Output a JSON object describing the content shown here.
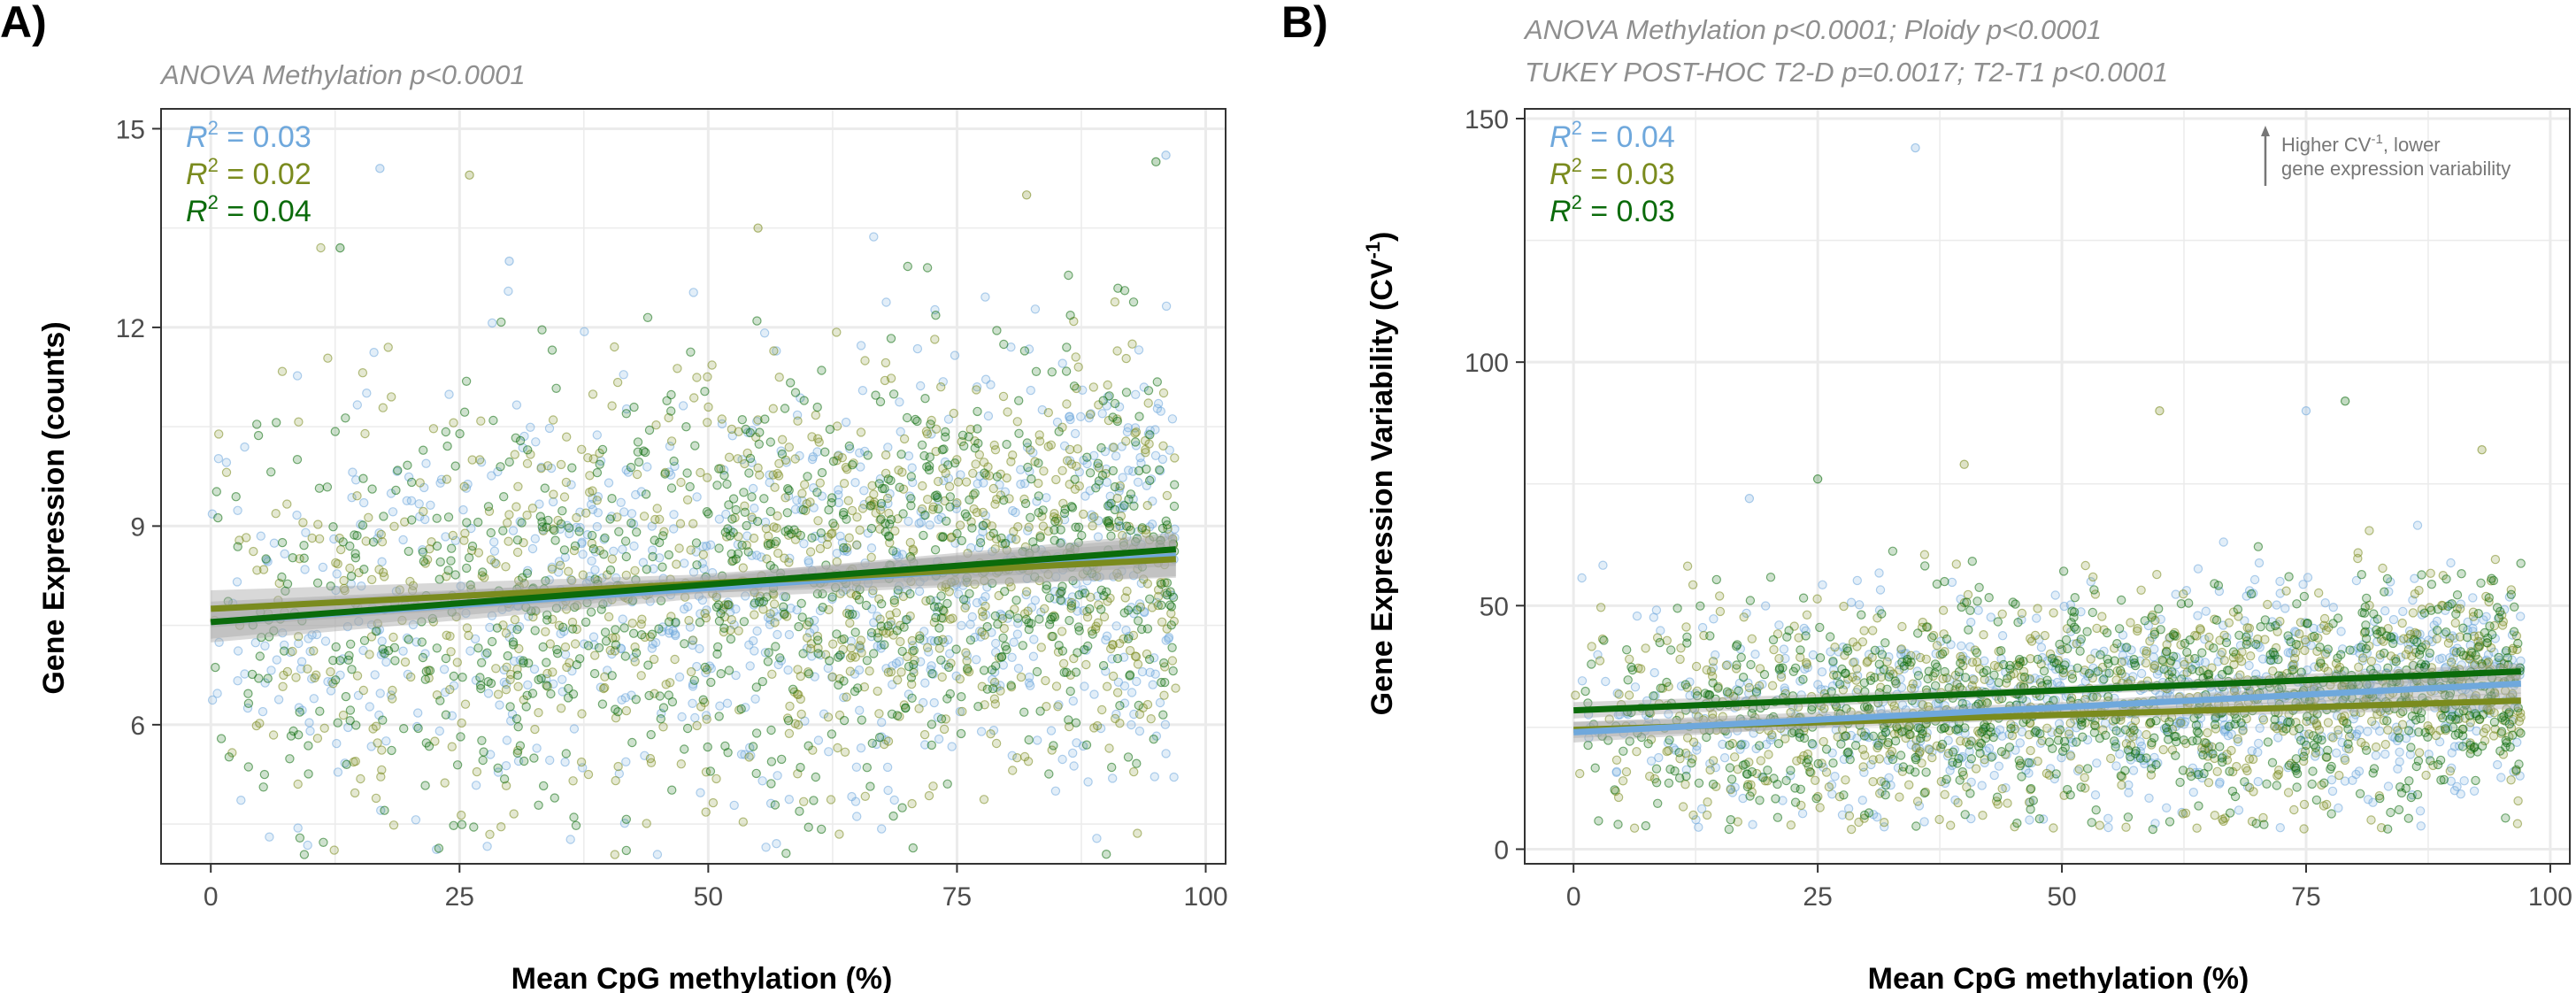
{
  "colors": {
    "series1": "#6fa8dc",
    "series2": "#7a8b1e",
    "series3": "#0b6b0b",
    "grid": "#ebebeb",
    "panel_border": "#333333",
    "ci_band": "#a8a8a8"
  },
  "chart_data": [
    {
      "type": "scatter",
      "panel_label": "A)",
      "subtitles": [
        "ANOVA Methylation p<0.0001"
      ],
      "xlabel": "Mean CpG methylation (%)",
      "ylabel": "Gene Expression (counts)",
      "xlim": [
        -5,
        102
      ],
      "ylim": [
        3.9,
        15.3
      ],
      "xticks": [
        0,
        25,
        50,
        75,
        100
      ],
      "yticks": [
        6,
        9,
        12,
        15
      ],
      "grid": true,
      "legend_position": "top-left",
      "r2_labels": [
        {
          "label": "R",
          "sup": "2",
          "value": " = 0.03",
          "color": "#6fa8dc"
        },
        {
          "label": "R",
          "sup": "2",
          "value": " = 0.02",
          "color": "#7a8b1e"
        },
        {
          "label": "R",
          "sup": "2",
          "value": " = 0.04",
          "color": "#0b6b0b"
        }
      ],
      "fit_lines": [
        {
          "x": [
            0,
            97
          ],
          "y": [
            7.55,
            8.55
          ],
          "ci": 0.22,
          "color": "#6fa8dc"
        },
        {
          "x": [
            0,
            97
          ],
          "y": [
            7.75,
            8.5
          ],
          "ci": 0.2,
          "color": "#7a8b1e"
        },
        {
          "x": [
            0,
            97
          ],
          "y": [
            7.55,
            8.65
          ],
          "ci": 0.18,
          "color": "#0b6b0b"
        }
      ],
      "scatter": {
        "points_per_series": 900,
        "x_range": [
          0,
          97
        ],
        "y_center_start": 7.6,
        "y_center_end": 8.6,
        "y_spread": 1.6,
        "y_min": 4.0,
        "y_max": 14.6,
        "outliers": [
          [
            17,
            14.4
          ],
          [
            26,
            14.3
          ],
          [
            95,
            14.5
          ],
          [
            96,
            14.6
          ],
          [
            82,
            14.0
          ],
          [
            13,
            13.2
          ],
          [
            30,
            13.0
          ],
          [
            55,
            13.5
          ]
        ]
      }
    },
    {
      "type": "scatter",
      "panel_label": "B)",
      "subtitles": [
        "ANOVA Methylation p<0.0001; Ploidy p<0.0001",
        "TUKEY POST-HOC T2-D p=0.0017; T2-T1 p<0.0001"
      ],
      "xlabel": "Mean CpG methylation (%)",
      "ylabel": "Gene Expression Variability (CV",
      "ylabel_sup": "-1",
      "ylabel_end": ")",
      "xlim": [
        -5,
        102
      ],
      "ylim": [
        -3,
        152
      ],
      "xticks": [
        0,
        25,
        50,
        75,
        100
      ],
      "yticks": [
        0,
        50,
        100,
        150
      ],
      "grid": true,
      "legend_position": "top-left",
      "r2_labels": [
        {
          "label": "R",
          "sup": "2",
          "value": " = 0.04",
          "color": "#6fa8dc"
        },
        {
          "label": "R",
          "sup": "2",
          "value": " = 0.03",
          "color": "#7a8b1e"
        },
        {
          "label": "R",
          "sup": "2",
          "value": " = 0.03",
          "color": "#0b6b0b"
        }
      ],
      "annotation": {
        "line1a": "Higher CV",
        "line1sup": "-1",
        "line1b": ", lower",
        "line2": "gene expression variability"
      },
      "fit_lines": [
        {
          "x": [
            0,
            97
          ],
          "y": [
            24,
            34
          ],
          "ci": 1.5,
          "color": "#6fa8dc"
        },
        {
          "x": [
            0,
            97
          ],
          "y": [
            24.5,
            30.5
          ],
          "ci": 1.2,
          "color": "#7a8b1e"
        },
        {
          "x": [
            0,
            97
          ],
          "y": [
            28.5,
            36.5
          ],
          "ci": 1.2,
          "color": "#0b6b0b"
        }
      ],
      "scatter": {
        "points_per_series": 900,
        "x_range": [
          0,
          97
        ],
        "y_center_start": 26,
        "y_center_end": 34,
        "y_spread": 11,
        "y_min": 4,
        "y_max": 85,
        "outliers": [
          [
            35,
            144
          ],
          [
            60,
            90
          ],
          [
            79,
            92
          ],
          [
            75,
            90
          ],
          [
            40,
            79
          ],
          [
            25,
            76
          ],
          [
            18,
            72
          ],
          [
            93,
            82
          ]
        ]
      }
    }
  ]
}
